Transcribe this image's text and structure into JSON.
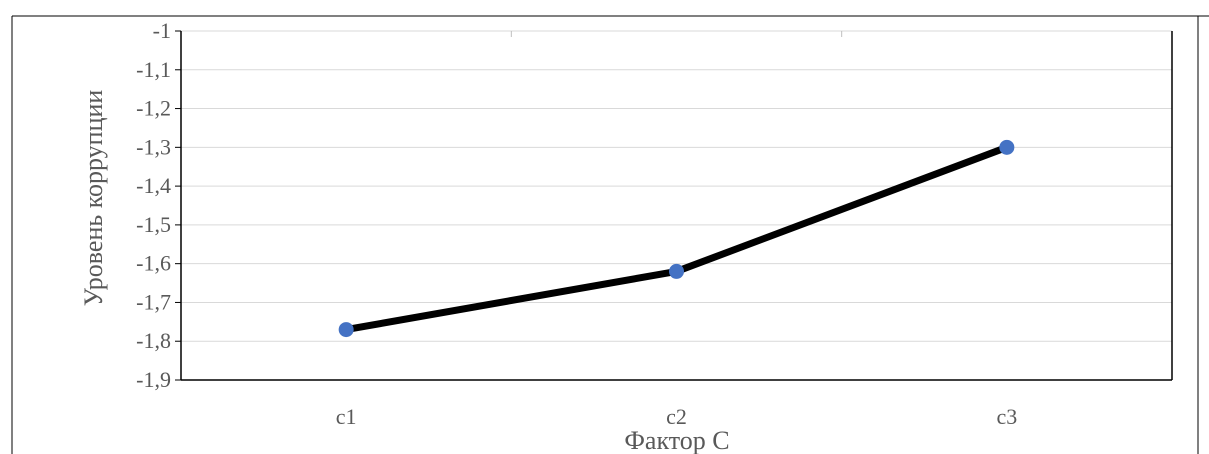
{
  "chart_data": {
    "type": "line",
    "categories": [
      "c1",
      "c2",
      "c3"
    ],
    "series": [
      {
        "values": [
          -1.77,
          -1.62,
          -1.3
        ]
      }
    ],
    "xlabel": "Фактор С",
    "ylabel": "Уровень коррупции",
    "ylim": [
      -1.9,
      -1.0
    ],
    "yticks": [
      -1.0,
      -1.1,
      -1.2,
      -1.3,
      -1.4,
      -1.5,
      -1.6,
      -1.7,
      -1.8,
      -1.9
    ],
    "ytick_labels": [
      "-1",
      "-1,1",
      "-1,2",
      "-1,3",
      "-1,4",
      "-1,5",
      "-1,6",
      "-1,7",
      "-1,8",
      "-1,9"
    ],
    "grid": true,
    "line_color": "#000000",
    "marker_color": "#4472C4",
    "grid_color": "#D9D9D9",
    "text_color": "#595959"
  }
}
